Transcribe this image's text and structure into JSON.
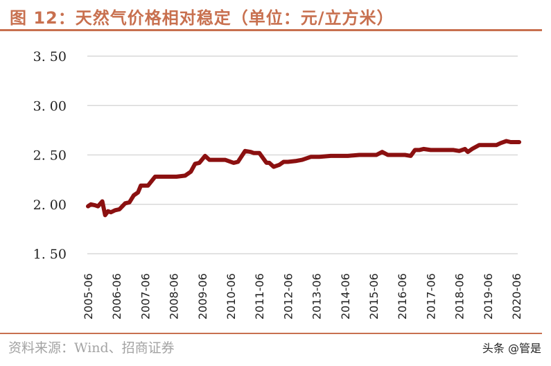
{
  "header": {
    "title": "图 12：天然气价格相对稳定（单位：元/立方米）"
  },
  "footer": {
    "source": "资料来源：Wind、招商证券",
    "watermark": "头条 @管是"
  },
  "colors": {
    "accent": "#c8704f",
    "line": "#8b1010",
    "grid": "#d9d9d9"
  },
  "chart_data": {
    "type": "line",
    "title": "天然气价格相对稳定（单位：元/立方米）",
    "xlabel": "",
    "ylabel": "元/立方米",
    "ylim": [
      1.5,
      3.5
    ],
    "yticks": [
      "3.50",
      "3.00",
      "2.50",
      "2.00",
      "1.50"
    ],
    "grid": true,
    "legend": null,
    "categories": [
      "2005-06",
      "2006-06",
      "2007-06",
      "2008-06",
      "2009-06",
      "2010-06",
      "2011-06",
      "2012-06",
      "2013-06",
      "2014-06",
      "2015-06",
      "2016-06",
      "2017-06",
      "2018-06",
      "2019-06",
      "2020-06"
    ],
    "series": [
      {
        "name": "天然气价格",
        "x": [
          2005.5,
          2005.6,
          2005.75,
          2005.85,
          2006.0,
          2006.1,
          2006.2,
          2006.3,
          2006.45,
          2006.6,
          2006.8,
          2006.95,
          2007.1,
          2007.25,
          2007.35,
          2007.5,
          2007.6,
          2007.85,
          2008.05,
          2008.3,
          2008.6,
          2008.9,
          2009.1,
          2009.25,
          2009.4,
          2009.6,
          2009.75,
          2009.85,
          2010.0,
          2010.3,
          2010.6,
          2010.75,
          2011.0,
          2011.2,
          2011.3,
          2011.5,
          2011.75,
          2011.85,
          2012.0,
          2012.2,
          2012.35,
          2012.5,
          2012.8,
          2013.0,
          2013.3,
          2013.6,
          2014.0,
          2014.3,
          2014.6,
          2015.0,
          2015.3,
          2015.6,
          2015.8,
          2016.0,
          2016.3,
          2016.6,
          2016.8,
          2016.95,
          2017.1,
          2017.25,
          2017.5,
          2017.7,
          2018.0,
          2018.3,
          2018.5,
          2018.7,
          2018.8,
          2018.95,
          2019.2,
          2019.5,
          2019.8,
          2019.95,
          2020.15,
          2020.3,
          2020.5,
          2020.6
        ],
        "values": [
          1.98,
          2.0,
          1.99,
          1.98,
          2.03,
          1.89,
          1.93,
          1.92,
          1.94,
          1.95,
          2.01,
          2.02,
          2.09,
          2.12,
          2.19,
          2.19,
          2.19,
          2.28,
          2.28,
          2.28,
          2.28,
          2.29,
          2.33,
          2.41,
          2.42,
          2.49,
          2.45,
          2.45,
          2.45,
          2.45,
          2.42,
          2.43,
          2.54,
          2.53,
          2.52,
          2.52,
          2.42,
          2.42,
          2.38,
          2.4,
          2.43,
          2.43,
          2.44,
          2.45,
          2.48,
          2.48,
          2.49,
          2.49,
          2.49,
          2.5,
          2.5,
          2.5,
          2.53,
          2.5,
          2.5,
          2.5,
          2.49,
          2.55,
          2.55,
          2.56,
          2.55,
          2.55,
          2.55,
          2.55,
          2.54,
          2.56,
          2.53,
          2.56,
          2.6,
          2.6,
          2.6,
          2.62,
          2.64,
          2.63,
          2.63,
          2.63
        ]
      }
    ]
  }
}
